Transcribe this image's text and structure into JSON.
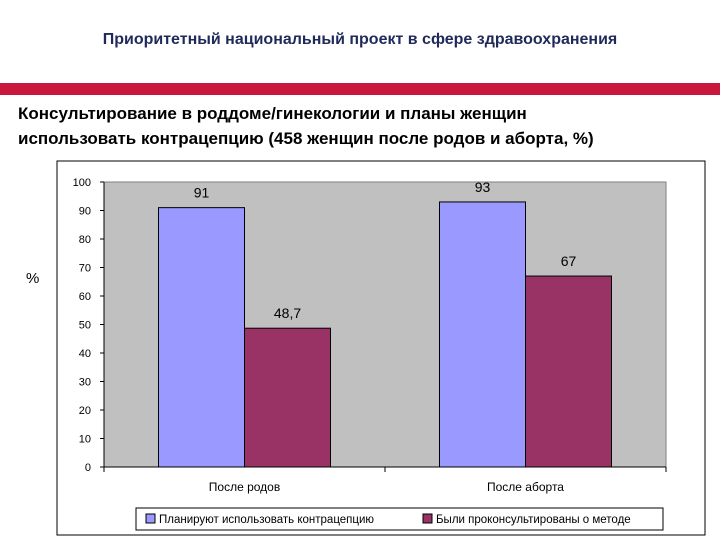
{
  "header": {
    "title": "Приоритетный национальный проект в сфере здравоохранения"
  },
  "slide": {
    "subtitle_line1": "Консультирование в роддоме/гинекологии и планы женщин",
    "subtitle_line2": "использовать контрацепцию (458 женщин после родов и аборта, %)",
    "accent_color": "#c8193c"
  },
  "chart_data": {
    "type": "bar",
    "categories": [
      "После родов",
      "После аборта"
    ],
    "series": [
      {
        "name": "Планируют использовать контрацепцию",
        "values": [
          91,
          93
        ],
        "labels": [
          "91",
          "93"
        ],
        "color": "#9999ff"
      },
      {
        "name": "Были проконсультированы о методе",
        "values": [
          48.7,
          67
        ],
        "labels": [
          "48,7",
          "67"
        ],
        "color": "#993366"
      }
    ],
    "ylabel": "%",
    "ylim": [
      0,
      100
    ],
    "yticks": [
      0,
      10,
      20,
      30,
      40,
      50,
      60,
      70,
      80,
      90,
      100
    ],
    "grid": false,
    "plot_background": "#c0c0c0",
    "legend_position": "bottom"
  }
}
